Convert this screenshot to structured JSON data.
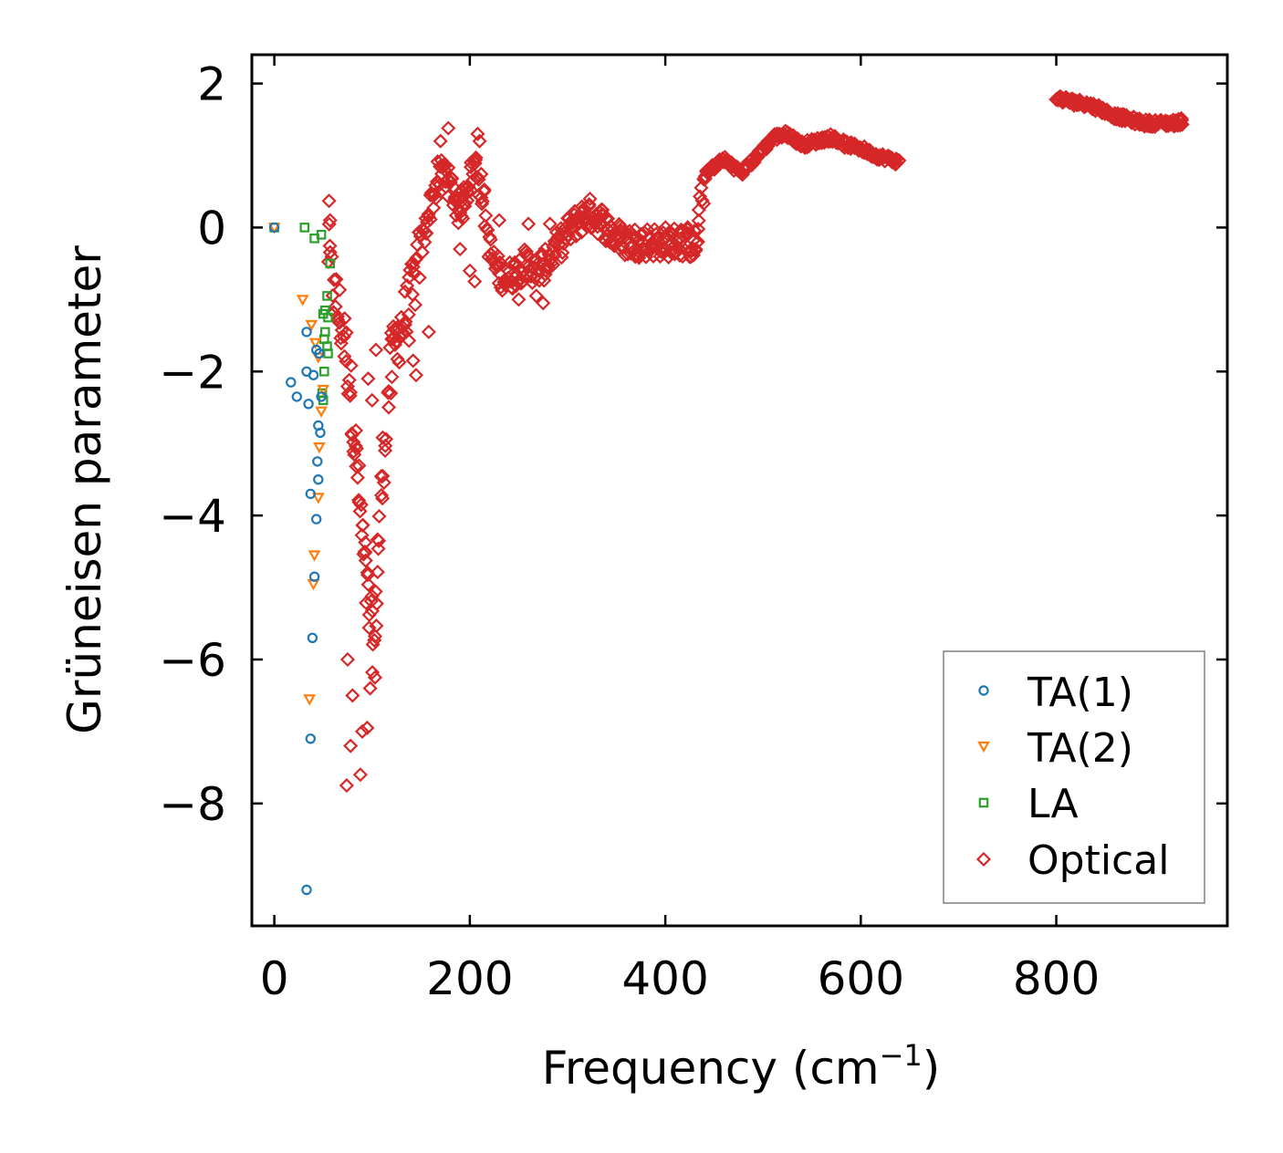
{
  "chart_data": {
    "type": "scatter",
    "title": "",
    "xlabel": "Frequency (cm",
    "xlabel_sup": "−1",
    "xlabel_close": ")",
    "ylabel": "Grüneisen parameter",
    "xlim": [
      -23,
      975
    ],
    "ylim": [
      -9.7,
      2.4
    ],
    "xticks": [
      0,
      200,
      400,
      600,
      800
    ],
    "xtick_labels": [
      "0",
      "200",
      "400",
      "600",
      "800"
    ],
    "yticks": [
      2,
      0,
      -2,
      -4,
      -6,
      -8
    ],
    "ytick_labels": [
      "2",
      "0",
      "−2",
      "−4",
      "−6",
      "−8"
    ],
    "grid": false,
    "legend_position": "bottom-right",
    "series": [
      {
        "name": "TA(1)",
        "marker": "circle",
        "color": "#1f77b4",
        "points": [
          [
            0,
            0
          ],
          [
            33,
            -1.45
          ],
          [
            17,
            -2.15
          ],
          [
            23,
            -2.35
          ],
          [
            33,
            -2.0
          ],
          [
            35,
            -2.45
          ],
          [
            40,
            -2.05
          ],
          [
            43,
            -1.7
          ],
          [
            46,
            -1.75
          ],
          [
            48,
            -2.35
          ],
          [
            45,
            -2.75
          ],
          [
            47,
            -2.85
          ],
          [
            44,
            -3.25
          ],
          [
            45,
            -3.5
          ],
          [
            37,
            -3.7
          ],
          [
            43,
            -4.05
          ],
          [
            41,
            -4.85
          ],
          [
            39,
            -5.7
          ],
          [
            37,
            -7.1
          ],
          [
            33,
            -9.2
          ]
        ]
      },
      {
        "name": "TA(2)",
        "marker": "triangle-down",
        "color": "#ff7f0e",
        "points": [
          [
            0,
            0
          ],
          [
            29,
            -1.0
          ],
          [
            38,
            -1.35
          ],
          [
            42,
            -1.6
          ],
          [
            45,
            -1.8
          ],
          [
            50,
            -2.25
          ],
          [
            48,
            -2.55
          ],
          [
            46,
            -3.05
          ],
          [
            45,
            -3.75
          ],
          [
            41,
            -4.55
          ],
          [
            40,
            -4.95
          ],
          [
            36,
            -6.55
          ]
        ]
      },
      {
        "name": "LA",
        "marker": "square",
        "color": "#2ca02c",
        "points": [
          [
            0,
            0
          ],
          [
            31,
            0.0
          ],
          [
            41,
            -0.15
          ],
          [
            48,
            -0.1
          ],
          [
            57,
            -0.5
          ],
          [
            54,
            -0.95
          ],
          [
            52,
            -1.15
          ],
          [
            50,
            -1.2
          ],
          [
            55,
            -1.25
          ],
          [
            52,
            -1.45
          ],
          [
            51,
            -1.55
          ],
          [
            54,
            -1.65
          ],
          [
            55,
            -1.75
          ],
          [
            51,
            -2.0
          ],
          [
            49,
            -2.3
          ],
          [
            50,
            -2.4
          ]
        ]
      },
      {
        "name": "Optical",
        "marker": "diamond",
        "color": "#d62728",
        "band_centers": [
          [
            55,
            -0.3
          ],
          [
            60,
            -0.9
          ],
          [
            66,
            -1.2
          ],
          [
            72,
            -1.6
          ],
          [
            78,
            -2.2
          ],
          [
            82,
            -2.9
          ],
          [
            86,
            -3.6
          ],
          [
            90,
            -4.3
          ],
          [
            94,
            -4.9
          ],
          [
            98,
            -5.4
          ],
          [
            102,
            -5.9
          ],
          [
            106,
            -4.5
          ],
          [
            110,
            -3.6
          ],
          [
            115,
            -2.6
          ],
          [
            120,
            -1.9
          ],
          [
            128,
            -1.4
          ],
          [
            136,
            -1.2
          ],
          [
            144,
            -0.7
          ],
          [
            150,
            -0.3
          ],
          [
            156,
            0.1
          ],
          [
            162,
            0.4
          ],
          [
            168,
            0.7
          ],
          [
            174,
            0.8
          ],
          [
            182,
            0.5
          ],
          [
            190,
            0.2
          ],
          [
            198,
            0.6
          ],
          [
            206,
            0.9
          ],
          [
            214,
            0.4
          ],
          [
            220,
            -0.3
          ],
          [
            228,
            -0.6
          ],
          [
            238,
            -0.7
          ],
          [
            248,
            -0.6
          ],
          [
            258,
            -0.5
          ],
          [
            268,
            -0.6
          ],
          [
            278,
            -0.5
          ],
          [
            288,
            -0.3
          ],
          [
            298,
            -0.1
          ],
          [
            310,
            0.1
          ],
          [
            322,
            0.2
          ],
          [
            334,
            0.1
          ],
          [
            346,
            -0.1
          ],
          [
            360,
            -0.2
          ],
          [
            376,
            -0.2
          ],
          [
            392,
            -0.2
          ],
          [
            408,
            -0.2
          ],
          [
            422,
            -0.2
          ],
          [
            432,
            -0.25
          ],
          [
            440,
            0.7
          ],
          [
            450,
            0.85
          ],
          [
            460,
            0.95
          ],
          [
            470,
            0.85
          ],
          [
            478,
            0.75
          ],
          [
            510,
            1.25
          ],
          [
            525,
            1.3
          ],
          [
            540,
            1.15
          ],
          [
            555,
            1.2
          ],
          [
            570,
            1.25
          ],
          [
            585,
            1.15
          ],
          [
            600,
            1.1
          ],
          [
            615,
            1.0
          ],
          [
            630,
            0.95
          ],
          [
            640,
            0.9
          ],
          [
            800,
            1.8
          ],
          [
            815,
            1.75
          ],
          [
            830,
            1.72
          ],
          [
            845,
            1.65
          ],
          [
            860,
            1.55
          ],
          [
            875,
            1.5
          ],
          [
            890,
            1.45
          ],
          [
            905,
            1.45
          ],
          [
            920,
            1.45
          ],
          [
            930,
            1.48
          ]
        ],
        "outliers": [
          [
            56,
            0.37
          ],
          [
            57,
            0.1
          ],
          [
            74,
            -7.75
          ],
          [
            78,
            -7.2
          ],
          [
            80,
            -6.5
          ],
          [
            88,
            -7.6
          ],
          [
            90,
            -7.0
          ],
          [
            95,
            -6.95
          ],
          [
            98,
            -6.4
          ],
          [
            103,
            -6.25
          ],
          [
            75,
            -6.0
          ],
          [
            178,
            1.38
          ],
          [
            170,
            1.2
          ],
          [
            208,
            1.3
          ],
          [
            210,
            1.2
          ],
          [
            120,
            -1.55
          ],
          [
            142,
            -1.85
          ],
          [
            145,
            -2.05
          ],
          [
            158,
            -1.45
          ],
          [
            104,
            -1.7
          ],
          [
            100,
            -2.4
          ],
          [
            96,
            -2.1
          ],
          [
            230,
            0.1
          ],
          [
            260,
            0.05
          ],
          [
            282,
            0.05
          ],
          [
            190,
            -0.3
          ],
          [
            200,
            -0.6
          ],
          [
            205,
            -0.75
          ],
          [
            250,
            -1.0
          ],
          [
            268,
            -0.95
          ],
          [
            275,
            -1.05
          ],
          [
            355,
            -0.05
          ],
          [
            370,
            -0.15
          ]
        ]
      }
    ]
  }
}
